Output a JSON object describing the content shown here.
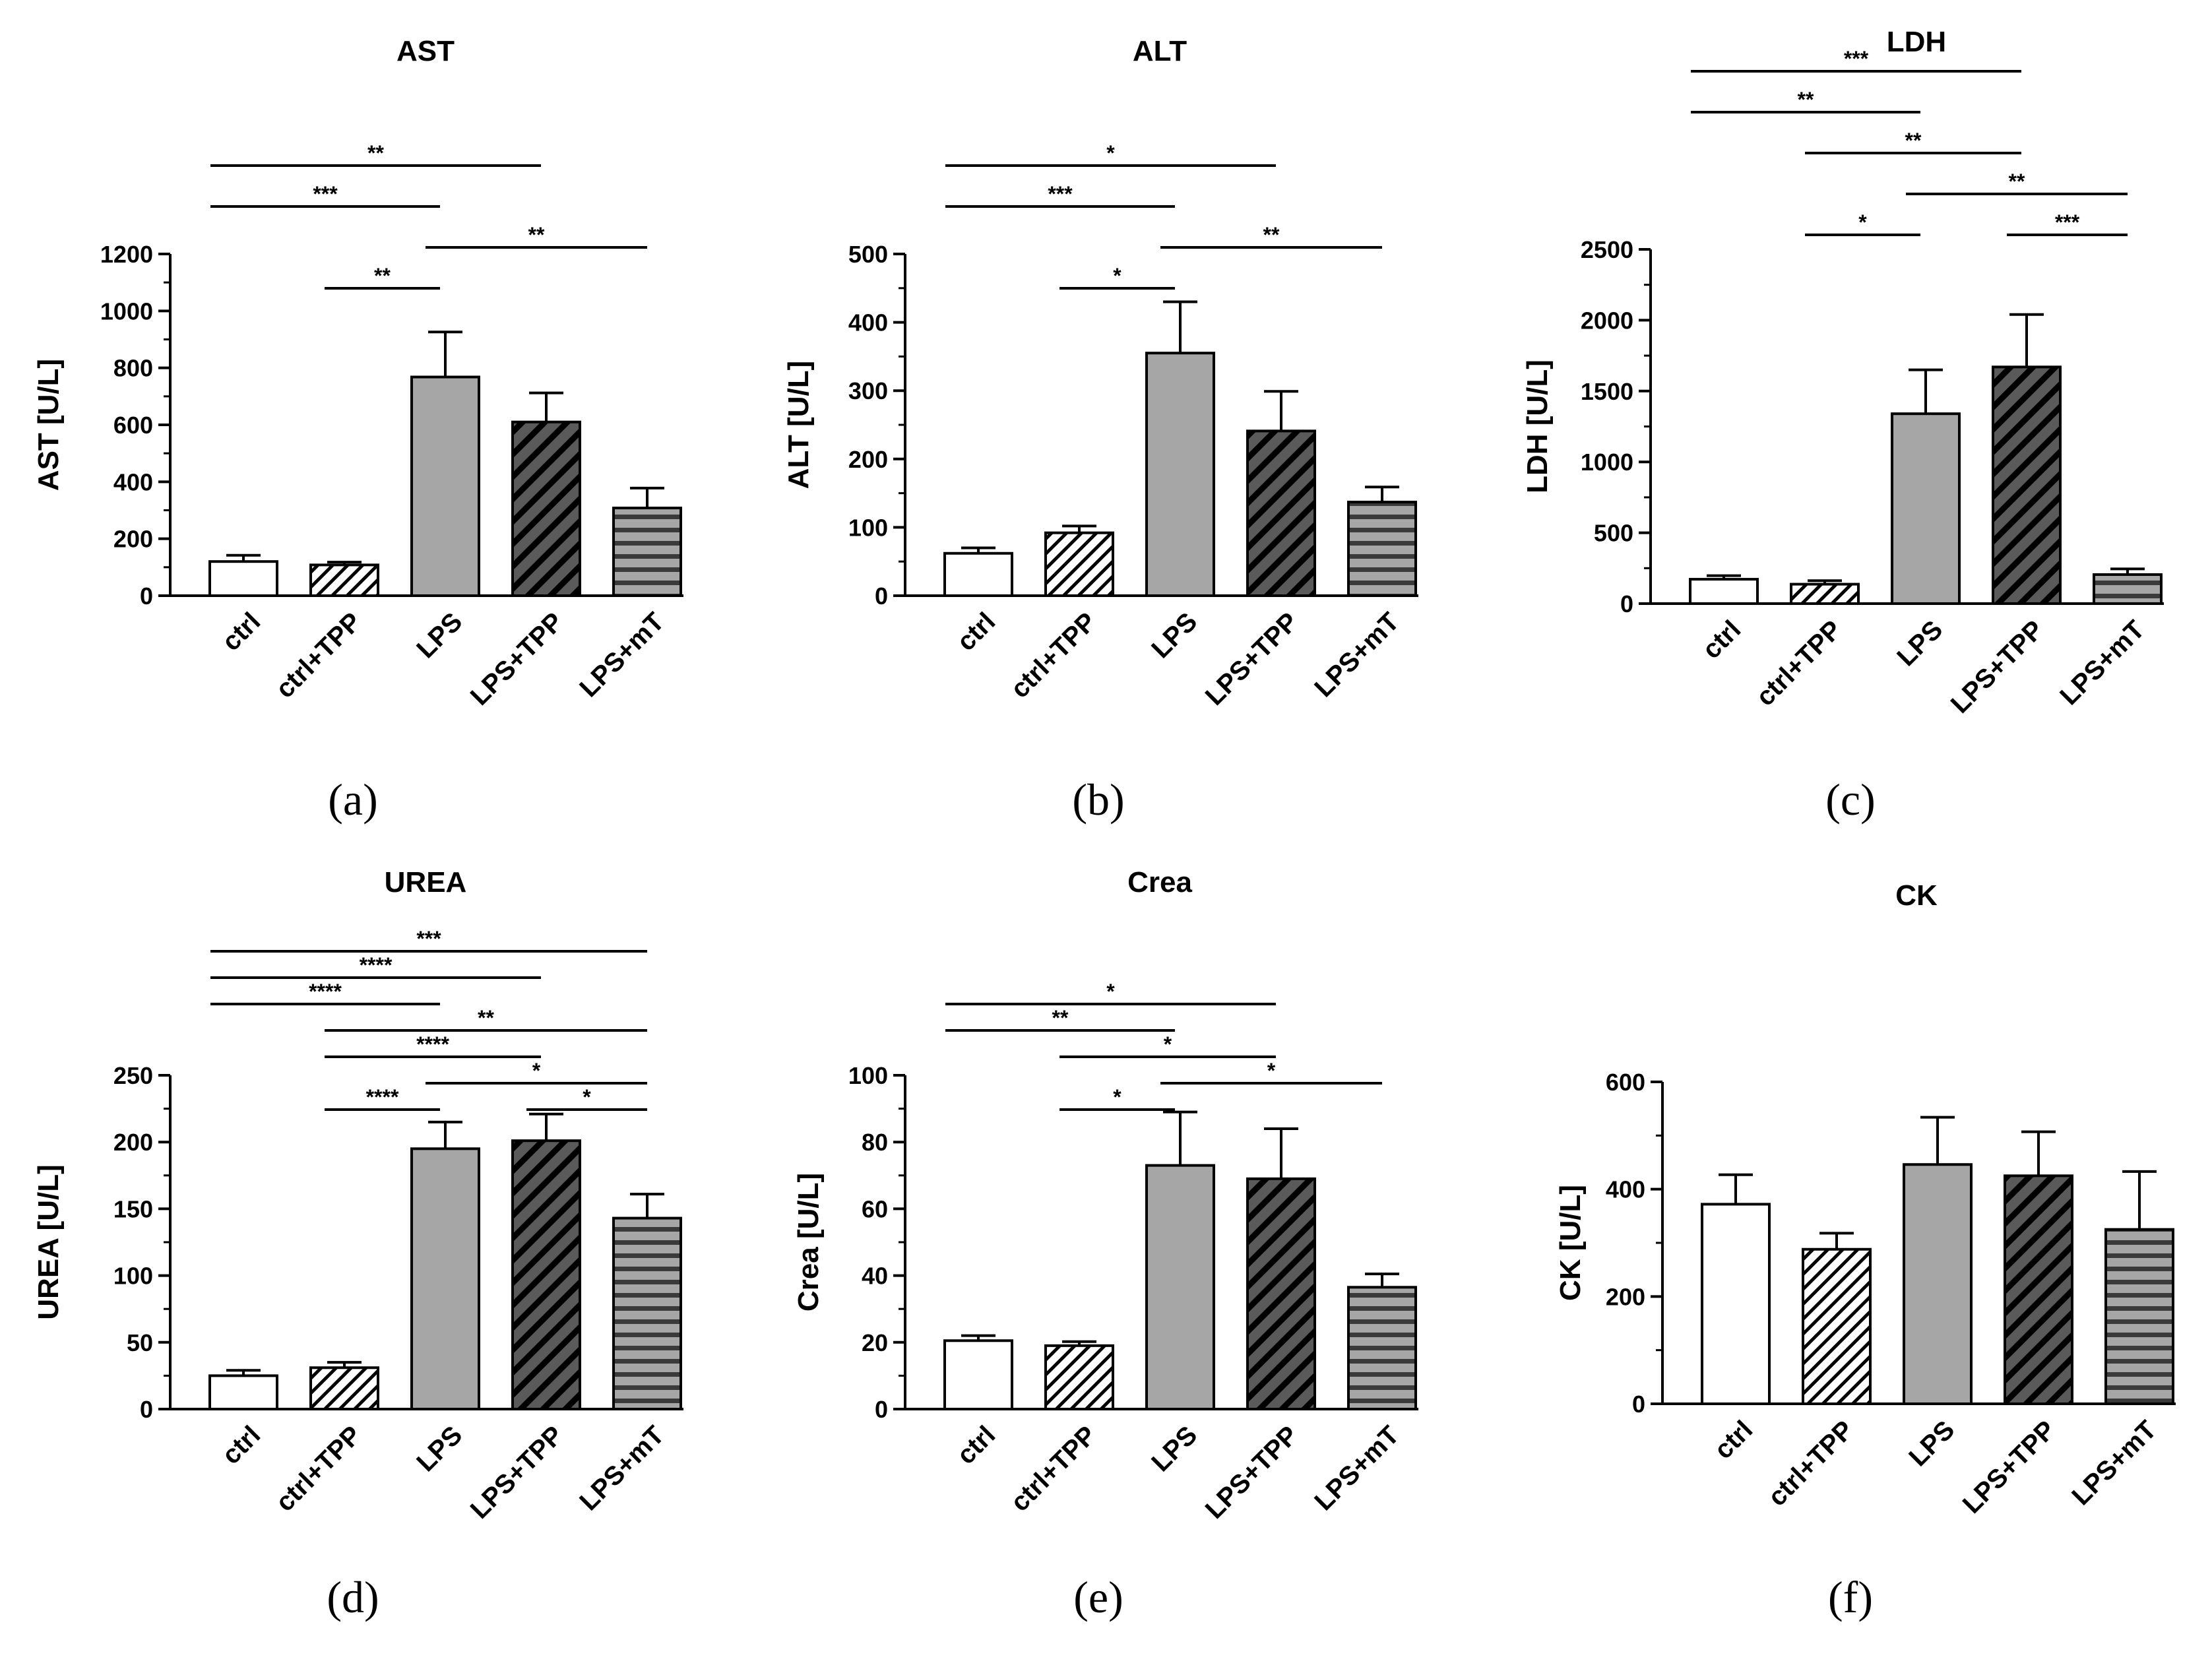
{
  "groups": [
    "ctrl",
    "ctrl+TPP",
    "LPS",
    "LPS+TPP",
    "LPS+mT"
  ],
  "colors": {
    "axis": "#000000",
    "bar_gray": "#a6a6a6",
    "bar_dark": "#5a5a5a",
    "bar_white": "#ffffff",
    "stripe": "#000000"
  },
  "chart_data": [
    {
      "type": "bar",
      "panel": "(a)",
      "title": "AST",
      "ylabel": "AST [U/L]",
      "categories": [
        "ctrl",
        "ctrl+TPP",
        "LPS",
        "LPS+TPP",
        "LPS+mT"
      ],
      "values": [
        120,
        108,
        768,
        610,
        308
      ],
      "errors": [
        22,
        10,
        158,
        102,
        70
      ],
      "ylim": [
        0,
        1200
      ],
      "yticks": [
        0,
        200,
        400,
        600,
        800,
        1000,
        1200
      ],
      "ytick_labels": [
        "0",
        "200",
        "400",
        "600",
        "800",
        "1000",
        "1200"
      ],
      "significance": [
        {
          "from": 1,
          "to": 2,
          "label": "**"
        },
        {
          "from": 2,
          "to": 4,
          "label": "**"
        },
        {
          "from": 0,
          "to": 2,
          "label": "***"
        },
        {
          "from": 0,
          "to": 3,
          "label": "**"
        }
      ]
    },
    {
      "type": "bar",
      "panel": "(b)",
      "title": "ALT",
      "ylabel": "ALT [U/L]",
      "categories": [
        "ctrl",
        "ctrl+TPP",
        "LPS",
        "LPS+TPP",
        "LPS+mT"
      ],
      "values": [
        62,
        92,
        355,
        241,
        137
      ],
      "errors": [
        8,
        10,
        75,
        58,
        22
      ],
      "ylim": [
        0,
        500
      ],
      "yticks": [
        0,
        100,
        200,
        300,
        400,
        500
      ],
      "ytick_labels": [
        "0",
        "100",
        "200",
        "300",
        "400",
        "500"
      ],
      "significance": [
        {
          "from": 1,
          "to": 2,
          "label": "*"
        },
        {
          "from": 2,
          "to": 4,
          "label": "**"
        },
        {
          "from": 0,
          "to": 2,
          "label": "***"
        },
        {
          "from": 0,
          "to": 3,
          "label": "*"
        }
      ]
    },
    {
      "type": "bar",
      "panel": "(c)",
      "title": "LDH",
      "ylabel": "LDH [U/L]",
      "categories": [
        "ctrl",
        "ctrl+TPP",
        "LPS",
        "LPS+TPP",
        "LPS+mT"
      ],
      "values": [
        172,
        137,
        1340,
        1670,
        205
      ],
      "errors": [
        25,
        25,
        310,
        370,
        40
      ],
      "ylim": [
        0,
        2500
      ],
      "yticks": [
        0,
        500,
        1000,
        1500,
        2000,
        2500
      ],
      "ytick_labels": [
        "0",
        "500",
        "1000",
        "1500",
        "2000",
        "2500"
      ],
      "significance": [
        {
          "from": 1,
          "to": 2,
          "label": "*"
        },
        {
          "from": 2,
          "to": 4,
          "label": "**"
        },
        {
          "from": 1,
          "to": 3,
          "label": "**"
        },
        {
          "from": 3,
          "to": 4,
          "label": "***"
        },
        {
          "from": 0,
          "to": 2,
          "label": "**"
        },
        {
          "from": 0,
          "to": 3,
          "label": "***"
        }
      ]
    },
    {
      "type": "bar",
      "panel": "(d)",
      "title": "UREA",
      "ylabel": "UREA  [U/L]",
      "categories": [
        "ctrl",
        "ctrl+TPP",
        "LPS",
        "LPS+TPP",
        "LPS+mT"
      ],
      "values": [
        25,
        31,
        195,
        201,
        143
      ],
      "errors": [
        4,
        4,
        20,
        20,
        18
      ],
      "ylim": [
        0,
        250
      ],
      "yticks": [
        0,
        50,
        100,
        150,
        200,
        250
      ],
      "ytick_labels": [
        "0",
        "50",
        "100",
        "150",
        "200",
        "250"
      ],
      "significance": [
        {
          "from": 1,
          "to": 2,
          "label": "****"
        },
        {
          "from": 2,
          "to": 4,
          "label": "*"
        },
        {
          "from": 1,
          "to": 3,
          "label": "****"
        },
        {
          "from": 3,
          "to": 4,
          "label": "*"
        },
        {
          "from": 1,
          "to": 4,
          "label": "**"
        },
        {
          "from": 0,
          "to": 2,
          "label": "****"
        },
        {
          "from": 0,
          "to": 3,
          "label": "****"
        },
        {
          "from": 0,
          "to": 4,
          "label": "***"
        }
      ]
    },
    {
      "type": "bar",
      "panel": "(e)",
      "title": "Crea",
      "ylabel": "Crea  [U/L]",
      "categories": [
        "ctrl",
        "ctrl+TPP",
        "LPS",
        "LPS+TPP",
        "LPS+mT"
      ],
      "values": [
        20.5,
        19,
        73,
        69,
        36.5
      ],
      "errors": [
        1.5,
        1.2,
        16,
        15,
        4
      ],
      "ylim": [
        0,
        100
      ],
      "yticks": [
        0,
        20,
        40,
        60,
        80,
        100
      ],
      "ytick_labels": [
        "0",
        "20",
        "40",
        "60",
        "80",
        "100"
      ],
      "significance": [
        {
          "from": 1,
          "to": 2,
          "label": "*"
        },
        {
          "from": 2,
          "to": 4,
          "label": "*"
        },
        {
          "from": 1,
          "to": 3,
          "label": "*"
        },
        {
          "from": 0,
          "to": 2,
          "label": "**"
        },
        {
          "from": 0,
          "to": 3,
          "label": "*"
        }
      ]
    },
    {
      "type": "bar",
      "panel": "(f)",
      "title": "CK",
      "ylabel": "CK  [U/L]",
      "categories": [
        "ctrl",
        "ctrl+TPP",
        "LPS",
        "LPS+TPP",
        "LPS+mT"
      ],
      "values": [
        372,
        288,
        446,
        425,
        325
      ],
      "errors": [
        55,
        30,
        88,
        82,
        108
      ],
      "ylim": [
        0,
        600
      ],
      "yticks": [
        0,
        200,
        400,
        600
      ],
      "ytick_labels": [
        "0",
        "200",
        "400",
        "600"
      ],
      "significance": []
    }
  ]
}
